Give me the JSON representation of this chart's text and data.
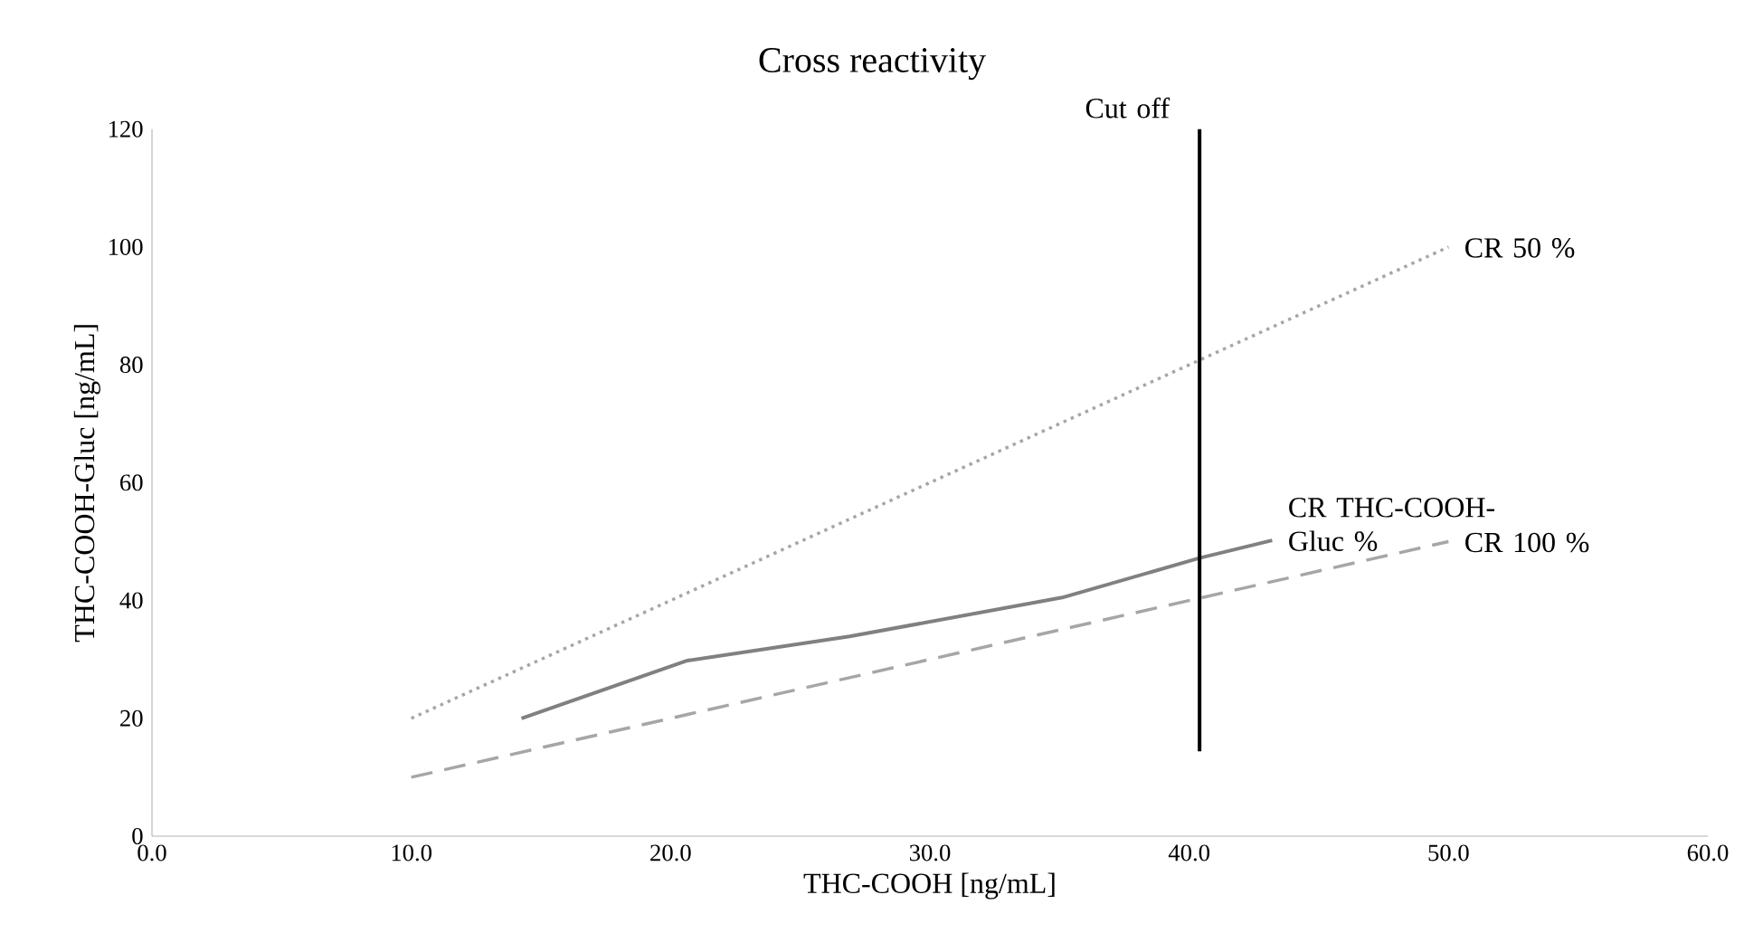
{
  "chart_data": {
    "type": "line",
    "title": "Cross reactivity",
    "xlabel": "THC-COOH [ng/mL]",
    "ylabel": "THC-COOH-Gluc [ng/mL]",
    "xlim": [
      0,
      60
    ],
    "ylim": [
      0,
      120
    ],
    "xticks": [
      {
        "value": 0,
        "label": "0.0"
      },
      {
        "value": 10,
        "label": "10.0"
      },
      {
        "value": 20,
        "label": "20.0"
      },
      {
        "value": 30,
        "label": "30.0"
      },
      {
        "value": 40,
        "label": "40.0"
      },
      {
        "value": 50,
        "label": "50.0"
      },
      {
        "value": 60,
        "label": "60.0"
      }
    ],
    "yticks": [
      0,
      20,
      40,
      60,
      80,
      100,
      120
    ],
    "grid": false,
    "series": [
      {
        "name": "CR 50 %",
        "color": "#a6a6a6",
        "line_style": "dotted",
        "x": [
          10,
          50
        ],
        "values": [
          20,
          100
        ]
      },
      {
        "name": "CR THC-COOH-Gluc %",
        "color": "#808080",
        "line_style": "solid",
        "x": [
          14.25,
          20.65,
          26.9,
          35.1,
          40.4,
          43.2
        ],
        "values": [
          20,
          29.8,
          33.9,
          40.5,
          47.2,
          50.2
        ]
      },
      {
        "name": "CR 100 %",
        "color": "#a6a6a6",
        "line_style": "dashed",
        "x": [
          10,
          50
        ],
        "values": [
          10,
          50
        ]
      },
      {
        "name": "Cut off",
        "color": "#000000",
        "line_style": "solid",
        "x": [
          40.4,
          40.4
        ],
        "values": [
          14.4,
          120
        ]
      }
    ]
  }
}
